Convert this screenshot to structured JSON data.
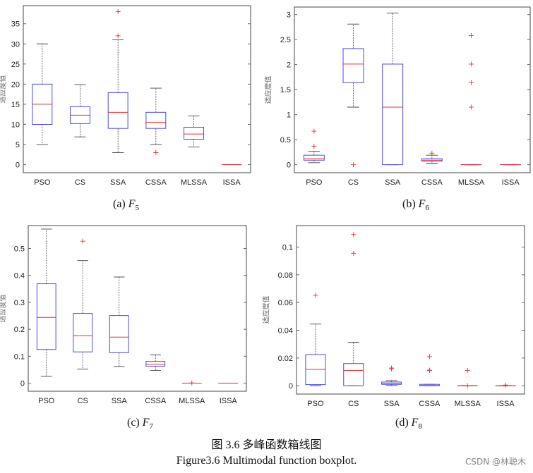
{
  "figure_caption_cn": "图 3.6  多峰函数箱线图",
  "figure_caption_en": "Figure3.6 Multimodal function boxplot.",
  "watermark": "CSDN @林聪木",
  "colors": {
    "box": "#4a4ae8",
    "median": "#e83030",
    "outlier": "#e83030",
    "whisker": "#444444",
    "frame": "#666666"
  },
  "chart_data": [
    {
      "type": "box",
      "caption": {
        "label": "(a) ",
        "func": "F",
        "sub": "5"
      },
      "ylabel": "适应度值",
      "categories": [
        "PSO",
        "CS",
        "SSA",
        "CSSA",
        "MLSSA",
        "ISSA"
      ],
      "ylim": [
        -2,
        39.5
      ],
      "yticks": [
        0,
        5,
        10,
        15,
        20,
        25,
        30,
        35
      ],
      "ytick_labels": [
        "0",
        "5",
        "10",
        "15",
        "20",
        "25",
        "30",
        "35"
      ],
      "boxes": [
        {
          "wlo": 5,
          "q1": 10,
          "med": 15,
          "q3": 20,
          "whi": 30,
          "outliers": []
        },
        {
          "wlo": 6.9,
          "q1": 10.2,
          "med": 12.3,
          "q3": 14.4,
          "whi": 19.9,
          "outliers": []
        },
        {
          "wlo": 3,
          "q1": 9,
          "med": 13,
          "q3": 17.9,
          "whi": 31,
          "outliers": [
            32,
            38
          ]
        },
        {
          "wlo": 5,
          "q1": 9,
          "med": 10.5,
          "q3": 13,
          "whi": 19,
          "outliers": [
            3
          ]
        },
        {
          "wlo": 4.4,
          "q1": 6.3,
          "med": 7.6,
          "q3": 9.3,
          "whi": 12.1,
          "outliers": []
        },
        {
          "wlo": 0,
          "q1": 0,
          "med": 0,
          "q3": 0,
          "whi": 0,
          "outliers": []
        }
      ]
    },
    {
      "type": "box",
      "caption": {
        "label": "(b) ",
        "func": "F",
        "sub": "6"
      },
      "ylabel": "适应度值",
      "categories": [
        "PSO",
        "CS",
        "SSA",
        "CSSA",
        "MLSSA",
        "ISSA"
      ],
      "ylim": [
        -0.16,
        3.15
      ],
      "yticks": [
        0,
        0.5,
        1,
        1.5,
        2,
        2.5,
        3
      ],
      "ytick_labels": [
        "0",
        "0.5",
        "1",
        "1.5",
        "2",
        "2.5",
        "3"
      ],
      "boxes": [
        {
          "wlo": 0.04,
          "q1": 0.09,
          "med": 0.12,
          "q3": 0.19,
          "whi": 0.27,
          "outliers": [
            0.37,
            0.67
          ]
        },
        {
          "wlo": 1.15,
          "q1": 1.64,
          "med": 2.01,
          "q3": 2.32,
          "whi": 2.81,
          "outliers": [
            0
          ]
        },
        {
          "wlo": 0,
          "q1": 0,
          "med": 1.15,
          "q3": 2.01,
          "whi": 3.03,
          "outliers": []
        },
        {
          "wlo": 0.03,
          "q1": 0.07,
          "med": 0.09,
          "q3": 0.12,
          "whi": 0.19,
          "outliers": [
            0.23
          ]
        },
        {
          "wlo": 0,
          "q1": 0,
          "med": 0,
          "q3": 0,
          "whi": 0,
          "outliers": [
            1.15,
            1.64,
            2.01,
            2.58
          ]
        },
        {
          "wlo": 0,
          "q1": 0,
          "med": 0,
          "q3": 0,
          "whi": 0,
          "outliers": []
        }
      ]
    },
    {
      "type": "box",
      "caption": {
        "label": "(c) ",
        "func": "F",
        "sub": "7"
      },
      "ylabel": "适应度值",
      "categories": [
        "PSO",
        "CS",
        "SSA",
        "CSSA",
        "MLSSA",
        "ISSA"
      ],
      "ylim": [
        -0.03,
        0.585
      ],
      "yticks": [
        0,
        0.1,
        0.2,
        0.3,
        0.4,
        0.5
      ],
      "ytick_labels": [
        "0",
        "0.1",
        "0.2",
        "0.3",
        "0.4",
        "0.5"
      ],
      "boxes": [
        {
          "wlo": 0.025,
          "q1": 0.125,
          "med": 0.244,
          "q3": 0.369,
          "whi": 0.572,
          "outliers": []
        },
        {
          "wlo": 0.052,
          "q1": 0.116,
          "med": 0.176,
          "q3": 0.259,
          "whi": 0.455,
          "outliers": [
            0.527
          ]
        },
        {
          "wlo": 0.062,
          "q1": 0.113,
          "med": 0.171,
          "q3": 0.251,
          "whi": 0.394,
          "outliers": []
        },
        {
          "wlo": 0.047,
          "q1": 0.063,
          "med": 0.07,
          "q3": 0.081,
          "whi": 0.105,
          "outliers": []
        },
        {
          "wlo": 0,
          "q1": 0,
          "med": 0,
          "q3": 0,
          "whi": 0,
          "outliers": [
            0.001
          ]
        },
        {
          "wlo": 0,
          "q1": 0,
          "med": 0,
          "q3": 0,
          "whi": 0,
          "outliers": []
        }
      ]
    },
    {
      "type": "box",
      "caption": {
        "label": "(d) ",
        "func": "F",
        "sub": "8"
      },
      "ylabel": "适应度值",
      "categories": [
        "PSO",
        "CS",
        "SSA",
        "CSSA",
        "MLSSA",
        "ISSA"
      ],
      "ylim": [
        -0.006,
        0.1155
      ],
      "yticks": [
        0,
        0.02,
        0.04,
        0.06,
        0.08,
        0.1
      ],
      "ytick_labels": [
        "0",
        "0.02",
        "0.04",
        "0.06",
        "0.08",
        "0.1"
      ],
      "boxes": [
        {
          "wlo": 0,
          "q1": 0.0008,
          "med": 0.0118,
          "q3": 0.0225,
          "whi": 0.0445,
          "outliers": [
            0.0652
          ]
        },
        {
          "wlo": 0,
          "q1": 0,
          "med": 0.011,
          "q3": 0.016,
          "whi": 0.0313,
          "outliers": [
            0.0955,
            0.109
          ]
        },
        {
          "wlo": 0.0002,
          "q1": 0.001,
          "med": 0.0017,
          "q3": 0.0027,
          "whi": 0.0037,
          "outliers": [
            0.0122,
            0.0128
          ]
        },
        {
          "wlo": 0,
          "q1": 0,
          "med": 0.0002,
          "q3": 0.001,
          "whi": 0.001,
          "outliers": [
            0.011,
            0.0112,
            0.021
          ]
        },
        {
          "wlo": 0,
          "q1": 0,
          "med": 0,
          "q3": 0,
          "whi": 0,
          "outliers": [
            0.011,
            0
          ]
        },
        {
          "wlo": 0,
          "q1": 0,
          "med": 0,
          "q3": 0,
          "whi": 0,
          "outliers": [
            0.0005
          ]
        }
      ]
    }
  ]
}
